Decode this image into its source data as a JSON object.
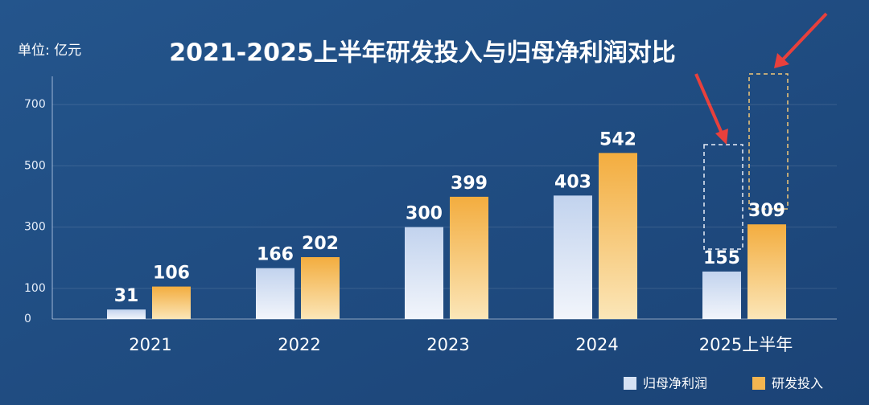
{
  "chart_data": {
    "type": "bar",
    "title": "2021-2025上半年研发投入与归母净利润对比",
    "unit_label": "单位: 亿元",
    "categories": [
      "2021",
      "2022",
      "2023",
      "2024",
      "2025上半年"
    ],
    "series": [
      {
        "name": "归母净利润",
        "color": "#d6e2f4",
        "values": [
          31,
          166,
          300,
          403,
          155
        ]
      },
      {
        "name": "研发投入",
        "color": "#f4b550",
        "values": [
          106,
          202,
          399,
          542,
          309
        ]
      }
    ],
    "ylim": [
      0,
      800
    ],
    "yticks": [
      0,
      100,
      300,
      500,
      700
    ],
    "grid": true,
    "legend": "bottom-right"
  }
}
